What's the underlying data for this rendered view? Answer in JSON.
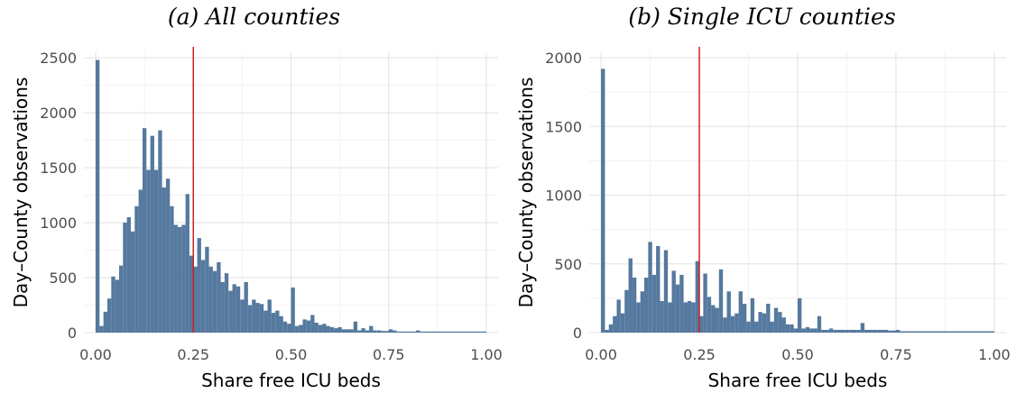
{
  "chart_data": [
    {
      "type": "bar",
      "title": "(a) All counties",
      "xlabel": "Share free ICU beds",
      "ylabel": "Day–County observations",
      "xlim": [
        -0.03,
        1.03
      ],
      "ylim": [
        0,
        2550
      ],
      "xticks": [
        0,
        0.25,
        0.5,
        0.75,
        1.0
      ],
      "xtick_labels": [
        "0.00",
        "0.25",
        "0.50",
        "0.75",
        "1.00"
      ],
      "yticks": [
        0,
        500,
        1000,
        1500,
        2000,
        2500
      ],
      "ytick_labels": [
        "0",
        "500",
        "1000",
        "1500",
        "2000",
        "2500"
      ],
      "reference_line": {
        "x": 0.25,
        "color": "#cc2222"
      },
      "bar_color": "#55799f",
      "grid": true,
      "bin_width": 0.01,
      "bin_starts": [
        0,
        0.01,
        0.02,
        0.03,
        0.04,
        0.05,
        0.06,
        0.07,
        0.08,
        0.09,
        0.1,
        0.11,
        0.12,
        0.13,
        0.14,
        0.15,
        0.16,
        0.17,
        0.18,
        0.19,
        0.2,
        0.21,
        0.22,
        0.23,
        0.24,
        0.25,
        0.26,
        0.27,
        0.28,
        0.29,
        0.3,
        0.31,
        0.32,
        0.33,
        0.34,
        0.35,
        0.36,
        0.37,
        0.38,
        0.39,
        0.4,
        0.41,
        0.42,
        0.43,
        0.44,
        0.45,
        0.46,
        0.47,
        0.48,
        0.49,
        0.5,
        0.51,
        0.52,
        0.53,
        0.54,
        0.55,
        0.56,
        0.57,
        0.58,
        0.59,
        0.6,
        0.61,
        0.62,
        0.63,
        0.64,
        0.65,
        0.66,
        0.67,
        0.68,
        0.69,
        0.7,
        0.71,
        0.72,
        0.73,
        0.74,
        0.75,
        0.76,
        0.77,
        0.78,
        0.79,
        0.8,
        0.81,
        0.82,
        0.83,
        0.84,
        0.85,
        0.86,
        0.87,
        0.88,
        0.89,
        0.9,
        0.91,
        0.92,
        0.93,
        0.94,
        0.95,
        0.96,
        0.97,
        0.98,
        0.99
      ],
      "values": [
        2480,
        60,
        190,
        310,
        510,
        480,
        610,
        1000,
        1050,
        920,
        1150,
        1300,
        1860,
        1480,
        1790,
        1480,
        1840,
        1320,
        1400,
        1150,
        980,
        960,
        980,
        1260,
        700,
        600,
        860,
        660,
        780,
        600,
        560,
        640,
        460,
        540,
        380,
        440,
        420,
        300,
        460,
        250,
        300,
        270,
        260,
        200,
        300,
        180,
        200,
        150,
        100,
        80,
        410,
        60,
        70,
        120,
        110,
        160,
        90,
        70,
        80,
        60,
        50,
        40,
        50,
        30,
        30,
        30,
        100,
        20,
        40,
        20,
        60,
        20,
        20,
        15,
        15,
        30,
        20,
        10,
        10,
        10,
        10,
        10,
        20,
        10,
        10,
        10,
        10,
        10,
        10,
        10,
        10,
        10,
        10,
        10,
        10,
        10,
        10,
        10,
        10,
        10
      ]
    },
    {
      "type": "bar",
      "title": "(b) Single ICU counties",
      "xlabel": "Share free ICU beds",
      "ylabel": "Day–County observations",
      "xlim": [
        -0.03,
        1.03
      ],
      "ylim": [
        0,
        2040
      ],
      "xticks": [
        0,
        0.25,
        0.5,
        0.75,
        1.0
      ],
      "xtick_labels": [
        "0.00",
        "0.25",
        "0.50",
        "0.75",
        "1.00"
      ],
      "yticks": [
        0,
        500,
        1000,
        1500,
        2000
      ],
      "ytick_labels": [
        "0",
        "500",
        "1000",
        "1500",
        "2000"
      ],
      "reference_line": {
        "x": 0.25,
        "color": "#cc2222"
      },
      "bar_color": "#55799f",
      "grid": true,
      "bin_width": 0.01,
      "bin_starts": [
        0,
        0.01,
        0.02,
        0.03,
        0.04,
        0.05,
        0.06,
        0.07,
        0.08,
        0.09,
        0.1,
        0.11,
        0.12,
        0.13,
        0.14,
        0.15,
        0.16,
        0.17,
        0.18,
        0.19,
        0.2,
        0.21,
        0.22,
        0.23,
        0.24,
        0.25,
        0.26,
        0.27,
        0.28,
        0.29,
        0.3,
        0.31,
        0.32,
        0.33,
        0.34,
        0.35,
        0.36,
        0.37,
        0.38,
        0.39,
        0.4,
        0.41,
        0.42,
        0.43,
        0.44,
        0.45,
        0.46,
        0.47,
        0.48,
        0.49,
        0.5,
        0.51,
        0.52,
        0.53,
        0.54,
        0.55,
        0.56,
        0.57,
        0.58,
        0.59,
        0.6,
        0.61,
        0.62,
        0.63,
        0.64,
        0.65,
        0.66,
        0.67,
        0.68,
        0.69,
        0.7,
        0.71,
        0.72,
        0.73,
        0.74,
        0.75,
        0.76,
        0.77,
        0.78,
        0.79,
        0.8,
        0.81,
        0.82,
        0.83,
        0.84,
        0.85,
        0.86,
        0.87,
        0.88,
        0.89,
        0.9,
        0.91,
        0.92,
        0.93,
        0.94,
        0.95,
        0.96,
        0.97,
        0.98,
        0.99
      ],
      "values": [
        1920,
        20,
        60,
        120,
        240,
        140,
        310,
        540,
        400,
        220,
        300,
        400,
        660,
        420,
        630,
        230,
        600,
        220,
        450,
        350,
        420,
        220,
        230,
        220,
        520,
        120,
        430,
        260,
        200,
        180,
        460,
        110,
        300,
        120,
        140,
        300,
        210,
        80,
        250,
        80,
        150,
        140,
        210,
        80,
        180,
        150,
        110,
        60,
        60,
        30,
        250,
        30,
        40,
        30,
        30,
        120,
        20,
        20,
        30,
        20,
        20,
        20,
        20,
        20,
        20,
        20,
        70,
        20,
        20,
        20,
        20,
        20,
        20,
        15,
        15,
        20,
        10,
        10,
        10,
        10,
        10,
        10,
        10,
        10,
        10,
        10,
        10,
        10,
        10,
        10,
        10,
        10,
        10,
        10,
        10,
        10,
        10,
        10,
        10,
        10
      ]
    }
  ]
}
